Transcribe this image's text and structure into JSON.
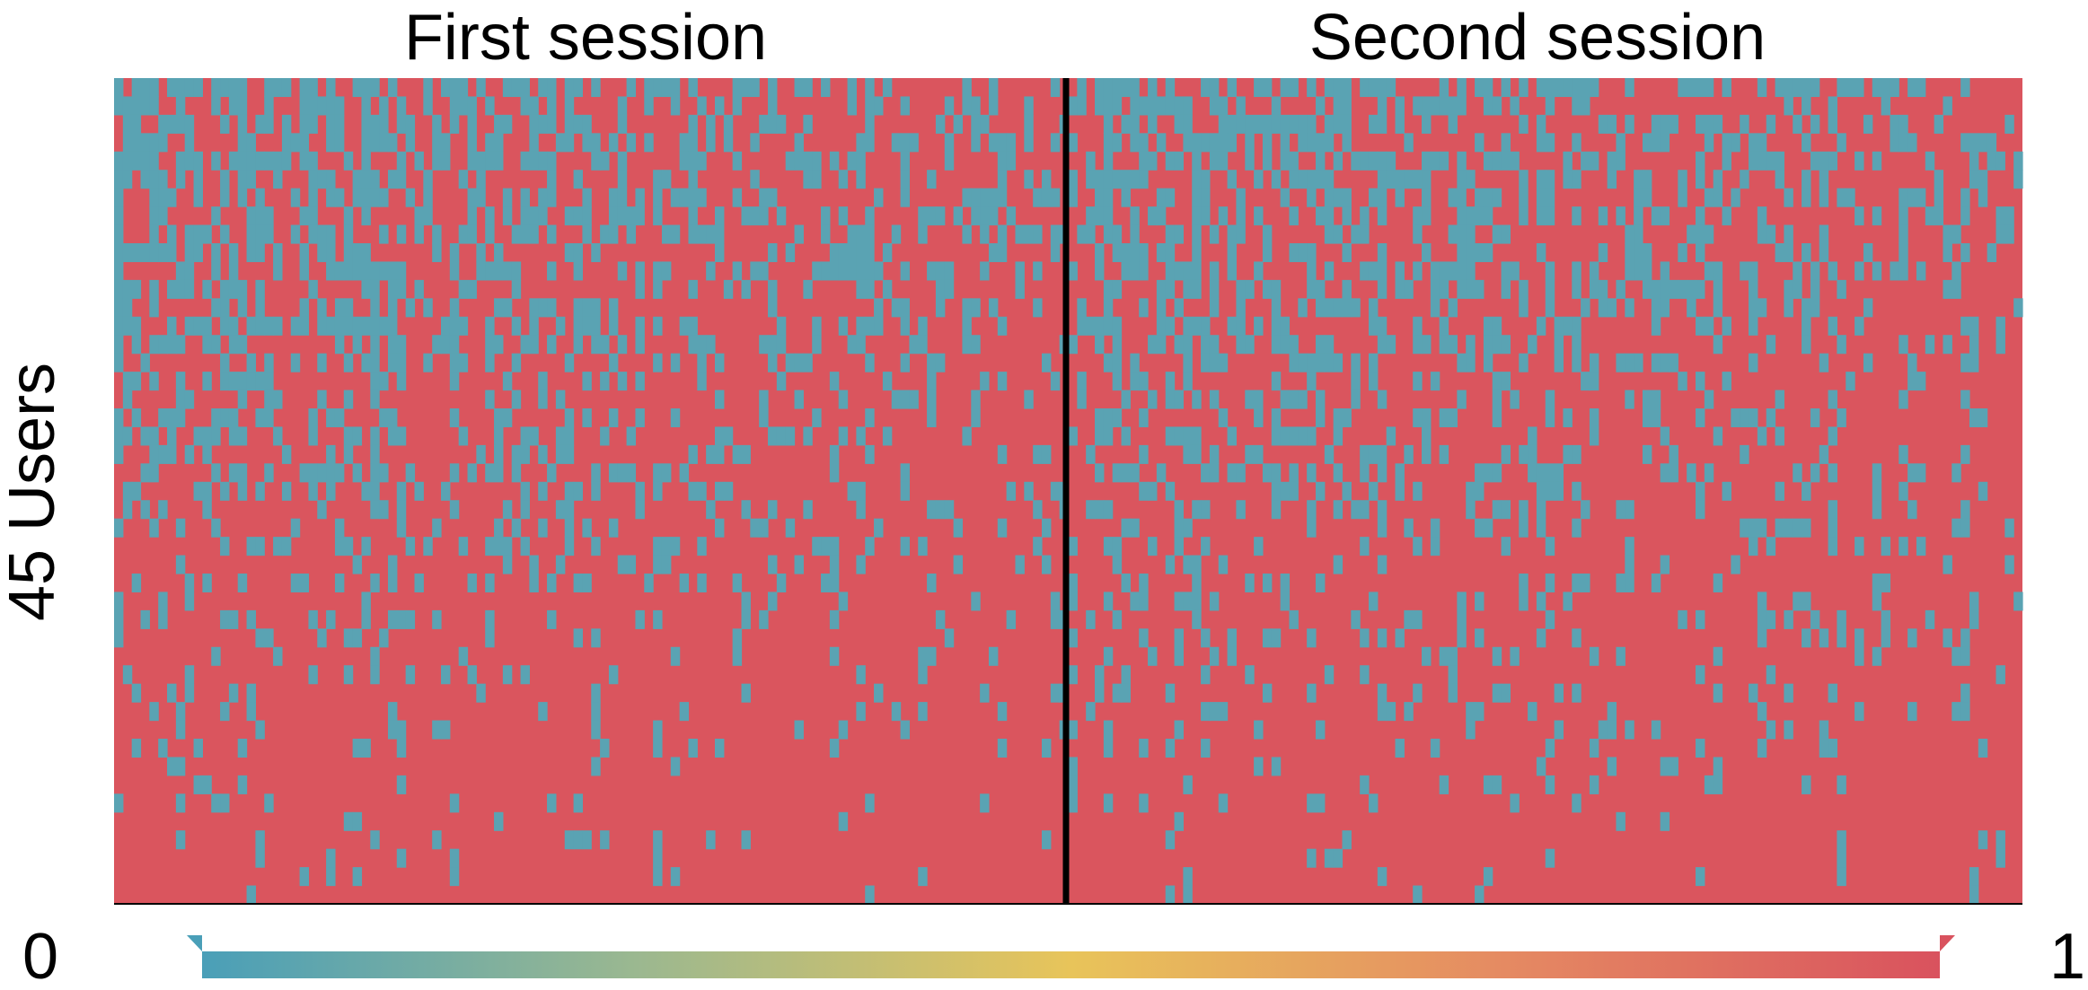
{
  "chart_data": {
    "type": "heatmap",
    "panels": [
      {
        "title": "First session"
      },
      {
        "title": "Second session"
      }
    ],
    "ylabel": "45 Users",
    "rows": 45,
    "colorbar": {
      "min_label": "0",
      "max_label": "1",
      "range": [
        0,
        1
      ],
      "colors": [
        "#4a9fb8",
        "#9bb890",
        "#e8c45a",
        "#e58a62",
        "#d9525e"
      ]
    },
    "cell_colors": {
      "low": "#5aa3b3",
      "high": "#da555e"
    },
    "divider_color": "#000000",
    "grid": false
  }
}
